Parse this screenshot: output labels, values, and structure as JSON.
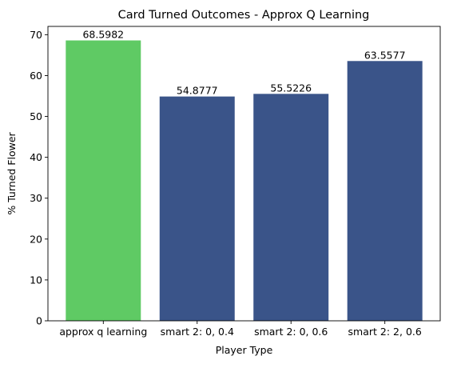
{
  "chart_data": {
    "type": "bar",
    "title": "Card Turned Outcomes - Approx Q Learning",
    "xlabel": "Player Type",
    "ylabel": "% Turned Flower",
    "categories": [
      "approx q learning",
      "smart 2: 0, 0.4",
      "smart 2: 0, 0.6",
      "smart 2: 2, 0.6"
    ],
    "values": [
      68.5982,
      54.8777,
      55.5226,
      63.5577
    ],
    "data_labels": [
      "68.5982",
      "54.8777",
      "55.5226",
      "63.5577"
    ],
    "bar_colors": [
      "#5fca64",
      "#3a5489",
      "#3a5489",
      "#3a5489"
    ],
    "ylim": [
      0,
      72.03
    ],
    "yticks": [
      0,
      10,
      20,
      30,
      40,
      50,
      60,
      70
    ],
    "grid": false,
    "legend": false
  }
}
